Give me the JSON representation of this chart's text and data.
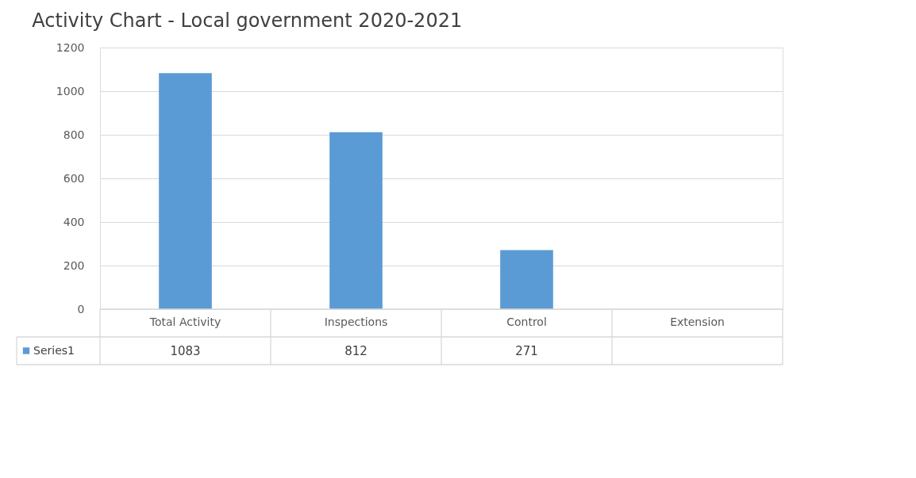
{
  "chart_data": {
    "type": "bar",
    "title": "Activity Chart - Local government 2020-2021",
    "categories": [
      "Total Activity",
      "Inspections",
      "Control",
      "Extension"
    ],
    "series": [
      {
        "name": "Series1",
        "color": "#5b9bd5",
        "values": [
          1083,
          812,
          271,
          null
        ]
      }
    ],
    "ylim": [
      0,
      1200
    ],
    "yticks": [
      0,
      200,
      400,
      600,
      800,
      1000,
      1200
    ],
    "grid": "y",
    "data_labels": true,
    "legend": "bottom"
  }
}
